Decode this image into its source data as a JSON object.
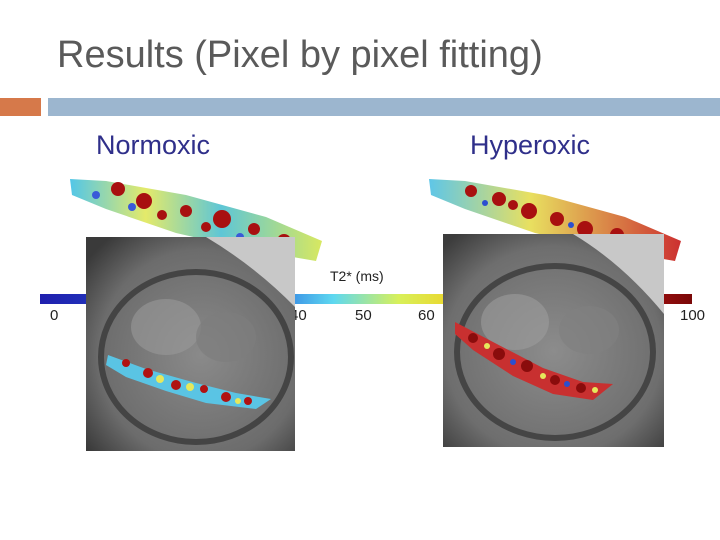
{
  "slide": {
    "title": "Results (Pixel by pixel fitting)",
    "accent_orange": "#d6794a",
    "accent_blue": "#9cb6cf"
  },
  "panels": {
    "left_label": "Normoxic",
    "right_label": "Hyperoxic"
  },
  "colorbar": {
    "title": "T2* (ms)",
    "ticks": [
      "0",
      "40",
      "50",
      "60",
      "100"
    ],
    "colors": [
      "#1f1fae",
      "#2a6fe0",
      "#5ed8f0",
      "#d8f05a",
      "#f0d020",
      "#c81818",
      "#7a0808"
    ]
  }
}
